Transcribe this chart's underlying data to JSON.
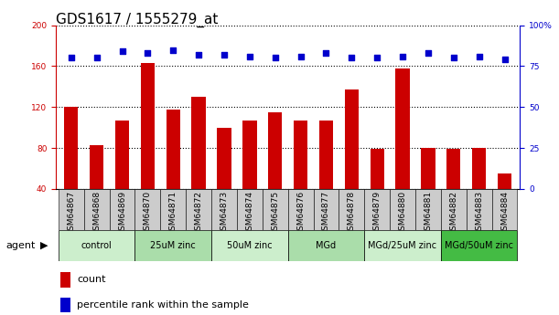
{
  "title": "GDS1617 / 1555279_at",
  "samples": [
    "GSM64867",
    "GSM64868",
    "GSM64869",
    "GSM64870",
    "GSM64871",
    "GSM64872",
    "GSM64873",
    "GSM64874",
    "GSM64875",
    "GSM64876",
    "GSM64877",
    "GSM64878",
    "GSM64879",
    "GSM64880",
    "GSM64881",
    "GSM64882",
    "GSM64883",
    "GSM64884"
  ],
  "counts": [
    120,
    83,
    107,
    163,
    118,
    130,
    100,
    107,
    115,
    107,
    107,
    137,
    79,
    158,
    80,
    79,
    80,
    55
  ],
  "percentiles": [
    80,
    80,
    84,
    83,
    85,
    82,
    82,
    81,
    80,
    81,
    83,
    80,
    80,
    81,
    83,
    80,
    81,
    79
  ],
  "bar_color": "#CC0000",
  "dot_color": "#0000CC",
  "ylim_left": [
    40,
    200
  ],
  "ylim_right": [
    0,
    100
  ],
  "yticks_left": [
    40,
    80,
    120,
    160,
    200
  ],
  "yticks_right": [
    0,
    25,
    50,
    75,
    100
  ],
  "groups": [
    {
      "label": "control",
      "start": 0,
      "end": 3,
      "color": "#cceecc"
    },
    {
      "label": "25uM zinc",
      "start": 3,
      "end": 6,
      "color": "#aaddaa"
    },
    {
      "label": "50uM zinc",
      "start": 6,
      "end": 9,
      "color": "#cceecc"
    },
    {
      "label": "MGd",
      "start": 9,
      "end": 12,
      "color": "#aaddaa"
    },
    {
      "label": "MGd/25uM zinc",
      "start": 12,
      "end": 15,
      "color": "#cceecc"
    },
    {
      "label": "MGd/50uM zinc",
      "start": 15,
      "end": 18,
      "color": "#44bb44"
    }
  ],
  "legend_count_label": "count",
  "legend_pct_label": "percentile rank within the sample",
  "title_fontsize": 11,
  "tick_fontsize": 6.5,
  "group_fontsize": 7,
  "legend_fontsize": 8
}
